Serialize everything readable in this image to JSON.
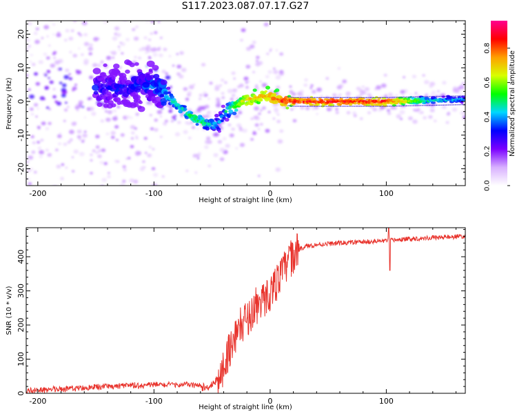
{
  "title": "S117.2023.087.07.17.G27",
  "colors": {
    "snr_line": "#e8322b",
    "axis": "#000000",
    "colorbar": [
      "#ffffff",
      "#d8b0ff",
      "#7a00ff",
      "#0000ff",
      "#00d8ff",
      "#00ff00",
      "#d8ff00",
      "#ffa000",
      "#ff0000",
      "#ff0090"
    ]
  },
  "chart_data": [
    {
      "type": "heatmap",
      "title": "S117.2023.087.07.17.G27",
      "xlabel": "Height of straight line (km)",
      "ylabel": "Frequency (Hz)",
      "xlim": [
        -210,
        168
      ],
      "ylim": [
        -25,
        24
      ],
      "xticks": [
        -200,
        -100,
        0,
        100
      ],
      "yticks": [
        -20,
        -10,
        0,
        10,
        20
      ],
      "colorbar": {
        "label": "Normalized spectral amplitude",
        "ticks": [
          "0.0",
          "0.2",
          "0.4",
          "0.6",
          "0.8"
        ],
        "range": [
          0,
          0.96
        ]
      },
      "ridge": {
        "x": [
          -140,
          -120,
          -105,
          -95,
          -88,
          -80,
          -70,
          -60,
          -50,
          -44,
          -38,
          -30,
          -20,
          -12,
          -5,
          0,
          5,
          20,
          60,
          100,
          140,
          168
        ],
        "freq": [
          4,
          4,
          5,
          4,
          1.5,
          -1,
          -4,
          -6,
          -7,
          -6.5,
          -3,
          -1,
          0.5,
          1,
          1.5,
          1.5,
          0.5,
          0,
          0,
          0,
          0.3,
          0.5
        ],
        "amplitude": [
          0.3,
          0.3,
          0.35,
          0.35,
          0.45,
          0.45,
          0.5,
          0.5,
          0.45,
          0.4,
          0.45,
          0.55,
          0.7,
          0.7,
          0.75,
          0.75,
          0.8,
          0.85,
          0.85,
          0.85,
          0.45,
          0.4
        ]
      }
    },
    {
      "type": "line",
      "xlabel": "Height of straight line (km)",
      "ylabel": "SNR (10 * v/v)",
      "xlim": [
        -210,
        168
      ],
      "ylim": [
        0,
        485
      ],
      "xticks": [
        -200,
        -100,
        0,
        100
      ],
      "yticks": [
        0,
        100,
        200,
        300,
        400
      ],
      "series": [
        {
          "x": [
            -210,
            -180,
            -150,
            -120,
            -100,
            -80,
            -65,
            -55,
            -45,
            -40,
            -35,
            -30,
            -25,
            -20,
            -15,
            -10,
            -5,
            0,
            5,
            10,
            15,
            20,
            25,
            30,
            40,
            50,
            60,
            80,
            100,
            120,
            140,
            168
          ],
          "values": [
            8,
            12,
            18,
            22,
            25,
            25,
            25,
            15,
            40,
            80,
            130,
            170,
            200,
            220,
            240,
            260,
            275,
            295,
            320,
            350,
            380,
            405,
            420,
            430,
            435,
            438,
            440,
            443,
            447,
            452,
            456,
            460
          ]
        }
      ]
    }
  ]
}
